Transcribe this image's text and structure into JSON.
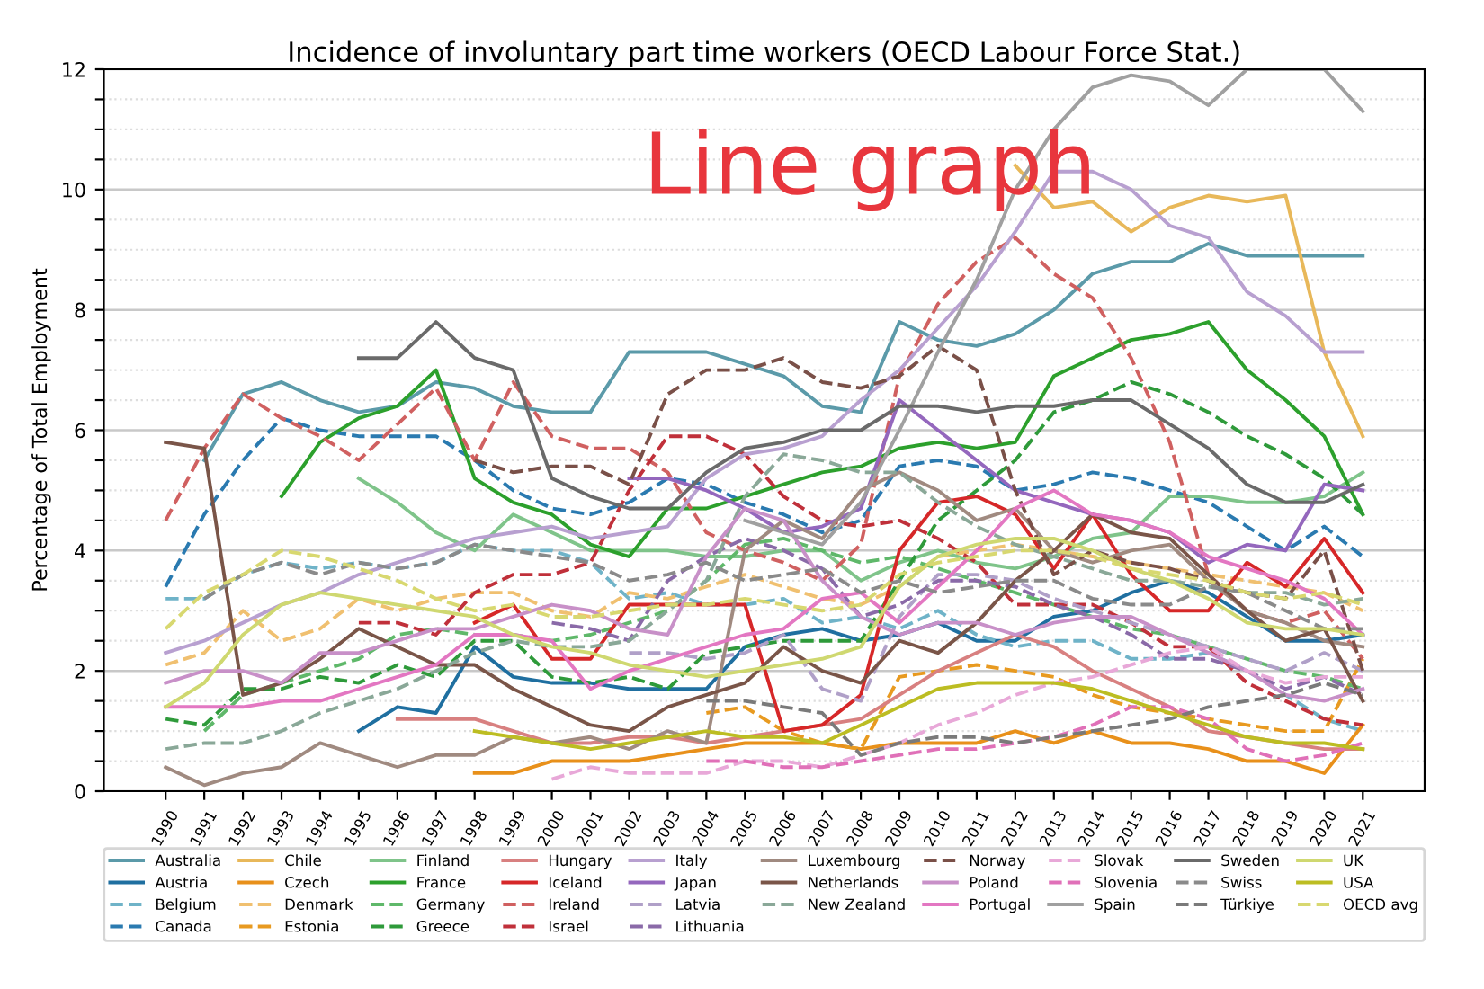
{
  "chart_data": {
    "type": "line",
    "title": "Incidence of involuntary part time workers (OECD Labour Force Stat.)",
    "ylabel": "Percentage of Total Employment",
    "annotations": [
      "Line graph"
    ],
    "x": [
      1990,
      1991,
      1992,
      1993,
      1994,
      1995,
      1996,
      1997,
      1998,
      1999,
      2000,
      2001,
      2002,
      2003,
      2004,
      2005,
      2006,
      2007,
      2008,
      2009,
      2010,
      2011,
      2012,
      2013,
      2014,
      2015,
      2016,
      2017,
      2018,
      2019,
      2020,
      2021
    ],
    "xlim": [
      1988.4,
      2022.6
    ],
    "xticks": [
      1990,
      1991,
      1992,
      1993,
      1994,
      1995,
      1996,
      1997,
      1998,
      1999,
      2000,
      2001,
      2002,
      2003,
      2004,
      2005,
      2006,
      2007,
      2008,
      2009,
      2010,
      2011,
      2012,
      2013,
      2014,
      2015,
      2016,
      2017,
      2018,
      2019,
      2020,
      2021
    ],
    "ylim": [
      0,
      12
    ],
    "yticks": [
      0,
      {
        "value": 0.5,
        "label": null
      },
      {
        "value": 1,
        "label": null
      },
      {
        "value": 1.5,
        "label": null
      },
      2,
      {
        "value": 2.5,
        "label": null
      },
      {
        "value": 3,
        "label": null
      },
      {
        "value": 3.5,
        "label": null
      },
      4,
      {
        "value": 4.5,
        "label": null
      },
      {
        "value": 5,
        "label": null
      },
      {
        "value": 5.5,
        "label": null
      },
      6,
      {
        "value": 6.5,
        "label": null
      },
      {
        "value": 7,
        "label": null
      },
      {
        "value": 7.5,
        "label": null
      },
      8,
      {
        "value": 8.5,
        "label": null
      },
      {
        "value": 9,
        "label": null
      },
      {
        "value": 9.5,
        "label": null
      },
      10,
      {
        "value": 10.5,
        "label": null
      },
      {
        "value": 11,
        "label": null
      },
      {
        "value": 11.5,
        "label": null
      },
      12
    ],
    "grid": "y",
    "legend": "bottom",
    "marker": "none",
    "series": [
      {
        "name": "Australia",
        "color": "#5b9aa9",
        "line_style": "solid",
        "values": [
          null,
          5.5,
          6.6,
          6.8,
          6.5,
          6.3,
          6.4,
          6.8,
          6.7,
          6.4,
          6.3,
          6.3,
          7.3,
          7.3,
          7.3,
          7.1,
          6.9,
          6.4,
          6.3,
          7.8,
          7.5,
          7.4,
          7.6,
          8.0,
          8.6,
          8.8,
          8.8,
          9.1,
          8.9,
          8.9,
          8.9,
          8.9
        ]
      },
      {
        "name": "Austria",
        "color": "#1f6fa0",
        "line_style": "solid",
        "values": [
          null,
          null,
          null,
          null,
          null,
          1.0,
          1.4,
          1.3,
          2.4,
          1.9,
          1.8,
          1.8,
          1.7,
          1.7,
          1.7,
          2.4,
          2.6,
          2.7,
          2.5,
          2.6,
          2.8,
          2.5,
          2.5,
          2.9,
          3.0,
          3.3,
          3.5,
          3.3,
          2.9,
          2.5,
          2.5,
          2.6
        ]
      },
      {
        "name": "Belgium",
        "color": "#6fb3c8",
        "line_style": "dashed",
        "values": [
          3.2,
          3.2,
          3.6,
          3.8,
          3.7,
          3.8,
          3.7,
          3.8,
          4.1,
          4.0,
          4.0,
          3.8,
          3.2,
          3.3,
          3.1,
          3.1,
          3.2,
          2.8,
          2.9,
          2.7,
          3.0,
          2.6,
          2.4,
          2.5,
          2.5,
          2.2,
          2.2,
          2.3,
          2.0,
          1.6,
          1.2,
          1.0
        ]
      },
      {
        "name": "Canada",
        "color": "#2a7ab0",
        "line_style": "dashed",
        "values": [
          3.4,
          4.6,
          5.5,
          6.2,
          6.0,
          5.9,
          5.9,
          5.9,
          5.5,
          5.0,
          4.7,
          4.6,
          4.8,
          5.2,
          5.1,
          4.8,
          4.6,
          4.3,
          4.5,
          5.4,
          5.5,
          5.4,
          5.0,
          5.1,
          5.3,
          5.2,
          5.0,
          4.8,
          4.4,
          4.0,
          4.4,
          3.9
        ]
      },
      {
        "name": "Chile",
        "color": "#e8b85a",
        "line_style": "solid",
        "values": [
          null,
          null,
          null,
          null,
          null,
          null,
          null,
          null,
          null,
          null,
          null,
          null,
          null,
          null,
          null,
          null,
          null,
          null,
          null,
          null,
          null,
          null,
          10.4,
          9.7,
          9.8,
          9.3,
          9.7,
          9.9,
          9.8,
          9.9,
          7.3,
          5.9
        ]
      },
      {
        "name": "Czech",
        "color": "#e8901a",
        "line_style": "solid",
        "values": [
          null,
          null,
          null,
          null,
          null,
          null,
          null,
          null,
          0.3,
          0.3,
          0.5,
          0.5,
          0.5,
          0.6,
          0.7,
          0.8,
          0.8,
          0.8,
          0.7,
          0.8,
          0.8,
          0.8,
          1.0,
          0.8,
          1.0,
          0.8,
          0.8,
          0.7,
          0.5,
          0.5,
          0.3,
          1.1
        ]
      },
      {
        "name": "Denmark",
        "color": "#f0c070",
        "line_style": "dashed",
        "values": [
          2.1,
          2.3,
          3.0,
          2.5,
          2.7,
          3.2,
          3.0,
          3.2,
          3.3,
          3.3,
          3.0,
          2.9,
          3.3,
          3.2,
          3.4,
          3.6,
          3.4,
          3.2,
          3.1,
          3.4,
          3.9,
          4.0,
          4.1,
          4.0,
          3.9,
          3.8,
          3.7,
          3.6,
          3.5,
          3.4,
          3.3,
          3.0
        ]
      },
      {
        "name": "Estonia",
        "color": "#e89a20",
        "line_style": "dashed",
        "values": [
          null,
          null,
          null,
          null,
          null,
          null,
          null,
          null,
          null,
          null,
          null,
          null,
          null,
          null,
          1.3,
          1.4,
          1.0,
          0.8,
          0.7,
          1.9,
          2.0,
          2.1,
          2.0,
          1.9,
          1.6,
          1.4,
          1.3,
          1.2,
          1.1,
          1.0,
          1.0,
          2.2
        ]
      },
      {
        "name": "Finland",
        "color": "#7fc48a",
        "line_style": "solid",
        "values": [
          null,
          null,
          null,
          null,
          null,
          5.2,
          4.8,
          4.3,
          4.0,
          4.6,
          4.3,
          4.0,
          4.0,
          4.0,
          3.9,
          3.9,
          4.0,
          4.0,
          3.5,
          3.8,
          4.0,
          3.8,
          3.7,
          3.9,
          4.2,
          4.3,
          4.9,
          4.9,
          4.8,
          4.8,
          4.9,
          5.3
        ]
      },
      {
        "name": "France",
        "color": "#2ca02c",
        "line_style": "solid",
        "values": [
          null,
          null,
          null,
          4.9,
          5.8,
          6.2,
          6.4,
          7.0,
          5.2,
          4.8,
          4.6,
          4.1,
          3.9,
          4.7,
          4.7,
          4.9,
          5.1,
          5.3,
          5.4,
          5.7,
          5.8,
          5.7,
          5.8,
          6.9,
          7.2,
          7.5,
          7.6,
          7.8,
          7.0,
          6.5,
          5.9,
          4.6
        ]
      },
      {
        "name": "Germany",
        "color": "#5fb86a",
        "line_style": "dashed",
        "values": [
          null,
          1.0,
          1.6,
          1.8,
          2.0,
          2.2,
          2.6,
          2.7,
          2.6,
          2.6,
          2.5,
          2.6,
          2.8,
          3.0,
          3.5,
          4.1,
          4.2,
          4.0,
          3.8,
          3.9,
          3.7,
          3.5,
          3.3,
          3.1,
          2.9,
          2.7,
          2.6,
          2.4,
          2.2,
          2.0,
          1.9,
          1.7
        ]
      },
      {
        "name": "Greece",
        "color": "#2e9a3a",
        "line_style": "dashed",
        "values": [
          1.2,
          1.1,
          1.7,
          1.7,
          1.9,
          1.8,
          2.1,
          1.9,
          2.5,
          2.5,
          1.9,
          1.8,
          1.9,
          1.7,
          2.3,
          2.4,
          2.5,
          2.5,
          2.5,
          3.5,
          4.5,
          5.0,
          5.5,
          6.3,
          6.5,
          6.8,
          6.6,
          6.3,
          5.9,
          5.6,
          5.2,
          4.6
        ]
      },
      {
        "name": "Hungary",
        "color": "#d88080",
        "line_style": "solid",
        "values": [
          null,
          null,
          null,
          null,
          null,
          null,
          1.2,
          1.2,
          1.2,
          1.0,
          0.8,
          0.8,
          0.9,
          0.9,
          0.8,
          0.9,
          1.0,
          1.1,
          1.2,
          1.6,
          2.0,
          2.3,
          2.6,
          2.4,
          2.0,
          1.7,
          1.4,
          1.0,
          0.9,
          0.8,
          0.7,
          0.7
        ]
      },
      {
        "name": "Iceland",
        "color": "#d62728",
        "line_style": "solid",
        "values": [
          null,
          null,
          null,
          null,
          null,
          null,
          null,
          null,
          2.8,
          3.1,
          2.2,
          2.2,
          3.1,
          3.1,
          3.1,
          3.1,
          1.0,
          1.1,
          1.6,
          4.0,
          4.8,
          4.9,
          4.6,
          3.7,
          4.6,
          3.6,
          3.0,
          3.0,
          3.8,
          3.4,
          4.2,
          3.3
        ]
      },
      {
        "name": "Ireland",
        "color": "#d06060",
        "line_style": "dashed",
        "values": [
          4.5,
          5.7,
          6.6,
          6.2,
          5.9,
          5.5,
          6.1,
          6.7,
          5.5,
          6.8,
          5.9,
          5.7,
          5.7,
          5.3,
          4.3,
          4.0,
          3.8,
          3.5,
          4.1,
          6.9,
          8.1,
          8.8,
          9.2,
          8.6,
          8.2,
          7.2,
          5.8,
          3.6,
          3.0,
          2.8,
          3.0,
          2.2
        ]
      },
      {
        "name": "Israel",
        "color": "#c0303a",
        "line_style": "dashed",
        "values": [
          null,
          null,
          null,
          null,
          null,
          2.8,
          2.8,
          2.6,
          3.3,
          3.6,
          3.6,
          3.8,
          5.0,
          5.9,
          5.9,
          5.6,
          4.9,
          4.5,
          4.4,
          4.5,
          4.2,
          3.8,
          3.1,
          3.1,
          3.1,
          2.8,
          2.4,
          2.4,
          1.8,
          1.5,
          1.2,
          1.1
        ]
      },
      {
        "name": "Italy",
        "color": "#b8a0d0",
        "line_style": "solid",
        "values": [
          2.3,
          2.5,
          2.8,
          3.1,
          3.3,
          3.6,
          3.8,
          4.0,
          4.2,
          4.3,
          4.4,
          4.2,
          4.3,
          4.4,
          5.2,
          5.6,
          5.7,
          5.9,
          6.5,
          7.0,
          7.7,
          8.4,
          9.3,
          10.3,
          10.3,
          10.0,
          9.4,
          9.2,
          8.3,
          7.9,
          7.3,
          7.3
        ]
      },
      {
        "name": "Japan",
        "color": "#9467bd",
        "line_style": "solid",
        "values": [
          null,
          null,
          null,
          null,
          null,
          null,
          null,
          null,
          null,
          null,
          null,
          null,
          5.2,
          5.2,
          5.0,
          4.7,
          4.3,
          4.4,
          4.7,
          6.5,
          6.0,
          5.5,
          5.0,
          4.8,
          4.6,
          4.5,
          4.3,
          3.8,
          4.1,
          4.0,
          5.1,
          5.0
        ]
      },
      {
        "name": "Latvia",
        "color": "#b0a0c8",
        "line_style": "dashed",
        "values": [
          null,
          null,
          null,
          null,
          null,
          null,
          null,
          null,
          null,
          null,
          null,
          null,
          2.3,
          2.3,
          2.2,
          2.3,
          2.6,
          1.7,
          1.5,
          2.9,
          3.6,
          3.6,
          3.5,
          3.2,
          3.0,
          2.8,
          2.6,
          2.4,
          2.2,
          2.0,
          2.3,
          2.0
        ]
      },
      {
        "name": "Lithuania",
        "color": "#8a6aa8",
        "line_style": "dashed",
        "values": [
          null,
          null,
          null,
          null,
          null,
          null,
          null,
          null,
          null,
          null,
          2.8,
          2.7,
          2.5,
          3.5,
          3.9,
          4.2,
          4.0,
          3.7,
          2.9,
          3.1,
          3.5,
          3.5,
          3.4,
          3.1,
          2.9,
          2.6,
          2.2,
          2.2,
          2.0,
          1.7,
          1.9,
          1.6
        ]
      },
      {
        "name": "Luxembourg",
        "color": "#a08a80",
        "line_style": "solid",
        "values": [
          0.4,
          0.1,
          0.3,
          0.4,
          0.8,
          0.6,
          0.4,
          0.6,
          0.6,
          0.9,
          0.8,
          0.9,
          0.7,
          1.0,
          0.8,
          4.0,
          4.5,
          4.2,
          5.0,
          5.3,
          5.0,
          4.5,
          4.7,
          4.0,
          3.8,
          4.0,
          4.1,
          3.5,
          3.0,
          2.8,
          2.5,
          2.4
        ]
      },
      {
        "name": "Netherlands",
        "color": "#7a5548",
        "line_style": "solid",
        "values": [
          5.8,
          5.7,
          1.6,
          1.8,
          2.2,
          2.7,
          2.4,
          2.1,
          2.1,
          1.7,
          1.4,
          1.1,
          1.0,
          1.4,
          1.6,
          1.8,
          2.4,
          2.0,
          1.8,
          2.5,
          2.3,
          2.8,
          3.5,
          4.0,
          4.6,
          4.3,
          4.2,
          3.6,
          3.0,
          2.5,
          2.7,
          1.5
        ]
      },
      {
        "name": "New Zealand",
        "color": "#8aa898",
        "line_style": "dashed",
        "values": [
          0.7,
          0.8,
          0.8,
          1.0,
          1.3,
          1.5,
          1.7,
          2.0,
          2.3,
          2.5,
          2.4,
          2.4,
          2.5,
          3.0,
          3.5,
          4.9,
          5.6,
          5.5,
          5.3,
          5.3,
          4.8,
          4.4,
          4.1,
          3.9,
          3.7,
          3.5,
          3.5,
          3.4,
          3.3,
          3.3,
          3.1,
          3.2
        ]
      },
      {
        "name": "Norway",
        "color": "#7a5048",
        "line_style": "dashed",
        "values": [
          null,
          null,
          null,
          null,
          null,
          null,
          null,
          null,
          5.5,
          5.3,
          5.4,
          5.4,
          5.1,
          6.6,
          7.0,
          7.0,
          7.2,
          6.8,
          6.7,
          6.9,
          7.4,
          7.0,
          5.0,
          3.6,
          4.0,
          3.8,
          3.7,
          3.5,
          3.3,
          3.2,
          4.0,
          2.0
        ]
      },
      {
        "name": "Poland",
        "color": "#c890c8",
        "line_style": "solid",
        "values": [
          1.8,
          2.0,
          2.0,
          1.8,
          2.3,
          2.3,
          2.5,
          2.7,
          2.7,
          2.9,
          3.1,
          3.0,
          2.7,
          2.6,
          3.9,
          4.7,
          4.5,
          3.5,
          2.9,
          2.6,
          2.8,
          2.8,
          2.6,
          2.8,
          2.9,
          2.9,
          2.6,
          2.3,
          2.0,
          1.6,
          1.5,
          1.7
        ]
      },
      {
        "name": "Portugal",
        "color": "#e377c2",
        "line_style": "solid",
        "values": [
          1.4,
          1.4,
          1.4,
          1.5,
          1.5,
          1.7,
          1.9,
          2.1,
          2.6,
          2.6,
          2.5,
          1.7,
          2.0,
          2.2,
          2.4,
          2.6,
          2.7,
          3.2,
          3.3,
          2.8,
          3.4,
          4.0,
          4.7,
          5.0,
          4.6,
          4.5,
          4.3,
          3.9,
          3.7,
          3.5,
          3.2,
          2.6
        ]
      },
      {
        "name": "Slovak",
        "color": "#e8a8d8",
        "line_style": "dashed",
        "values": [
          null,
          null,
          null,
          null,
          null,
          null,
          null,
          null,
          null,
          null,
          0.2,
          0.4,
          0.3,
          0.3,
          0.3,
          0.5,
          0.5,
          0.4,
          0.6,
          0.8,
          1.1,
          1.3,
          1.6,
          1.8,
          1.9,
          2.1,
          2.3,
          2.4,
          2.0,
          1.8,
          1.9,
          1.9
        ]
      },
      {
        "name": "Slovenia",
        "color": "#e070b8",
        "line_style": "dashed",
        "values": [
          null,
          null,
          null,
          null,
          null,
          null,
          null,
          null,
          null,
          null,
          null,
          null,
          null,
          null,
          0.5,
          0.5,
          0.4,
          0.4,
          0.5,
          0.6,
          0.7,
          0.7,
          0.8,
          0.9,
          1.1,
          1.4,
          1.4,
          1.2,
          0.7,
          0.5,
          0.6,
          0.8
        ]
      },
      {
        "name": "Spain",
        "color": "#a0a0a0",
        "line_style": "solid",
        "values": [
          null,
          null,
          null,
          null,
          null,
          null,
          null,
          null,
          null,
          null,
          null,
          null,
          null,
          null,
          null,
          4.5,
          4.3,
          4.1,
          4.8,
          6.0,
          7.3,
          8.5,
          10.0,
          11.0,
          11.7,
          11.9,
          11.8,
          11.4,
          12.0,
          12.0,
          12.0,
          11.3
        ]
      },
      {
        "name": "Sweden",
        "color": "#6a6a6a",
        "line_style": "solid",
        "values": [
          null,
          null,
          null,
          null,
          null,
          7.2,
          7.2,
          7.8,
          7.2,
          7.0,
          5.2,
          4.9,
          4.7,
          4.7,
          5.3,
          5.7,
          5.8,
          6.0,
          6.0,
          6.4,
          6.4,
          6.3,
          6.4,
          6.4,
          6.5,
          6.5,
          6.1,
          5.7,
          5.1,
          4.8,
          4.8,
          5.1
        ]
      },
      {
        "name": "Swiss",
        "color": "#8a8a8a",
        "line_style": "dashed",
        "values": [
          null,
          3.2,
          3.6,
          3.8,
          3.6,
          3.8,
          3.7,
          3.8,
          4.1,
          4.0,
          3.9,
          3.8,
          3.5,
          3.6,
          3.8,
          3.5,
          3.6,
          3.7,
          3.3,
          3.5,
          3.3,
          3.4,
          3.5,
          3.5,
          3.2,
          3.1,
          3.1,
          3.4,
          3.3,
          3.0,
          2.7,
          2.7
        ]
      },
      {
        "name": "Türkiye",
        "color": "#7a7a7a",
        "line_style": "dashed",
        "values": [
          null,
          null,
          null,
          null,
          null,
          null,
          null,
          null,
          null,
          null,
          null,
          null,
          null,
          null,
          1.5,
          1.5,
          1.4,
          1.3,
          0.6,
          0.8,
          0.9,
          0.9,
          0.8,
          0.9,
          1.0,
          1.1,
          1.2,
          1.4,
          1.5,
          1.6,
          1.8,
          1.6
        ]
      },
      {
        "name": "UK",
        "color": "#cfd870",
        "line_style": "solid",
        "values": [
          1.4,
          1.8,
          2.6,
          3.1,
          3.3,
          3.2,
          3.1,
          3.0,
          2.9,
          2.6,
          2.4,
          2.3,
          2.1,
          2.0,
          1.9,
          2.0,
          2.1,
          2.2,
          2.4,
          3.4,
          3.9,
          4.1,
          4.2,
          4.2,
          4.0,
          3.7,
          3.5,
          3.2,
          2.8,
          2.7,
          2.7,
          2.6
        ]
      },
      {
        "name": "USA",
        "color": "#bcbd22",
        "line_style": "solid",
        "values": [
          null,
          null,
          null,
          null,
          null,
          null,
          null,
          null,
          1.0,
          0.9,
          0.8,
          0.7,
          0.8,
          0.9,
          1.0,
          0.9,
          0.9,
          0.8,
          1.1,
          1.4,
          1.7,
          1.8,
          1.8,
          1.8,
          1.7,
          1.5,
          1.3,
          1.1,
          0.9,
          0.8,
          0.8,
          0.7
        ]
      },
      {
        "name": "OECD avg",
        "color": "#d8d870",
        "line_style": "dashed",
        "values": [
          2.7,
          3.3,
          3.6,
          4.0,
          3.9,
          3.7,
          3.5,
          3.2,
          3.0,
          3.1,
          2.9,
          2.9,
          3.0,
          3.1,
          3.1,
          3.2,
          3.1,
          3.0,
          3.1,
          3.6,
          3.8,
          3.9,
          4.0,
          4.0,
          3.9,
          3.7,
          3.6,
          3.5,
          3.3,
          3.2,
          3.3,
          3.1
        ]
      }
    ]
  }
}
